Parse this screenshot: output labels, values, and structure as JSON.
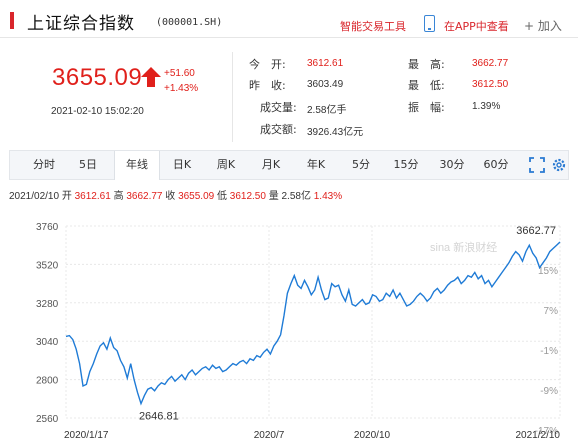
{
  "header": {
    "title": "上证综合指数",
    "code": "(000001.SH)",
    "tool_link": "智能交易工具",
    "app_link": "在APP中查看",
    "add_label": "+ 加入"
  },
  "quote": {
    "price": "3655.09",
    "change": "+51.60",
    "change_pct": "+1.43%",
    "datetime": "2021-02-10 15:02:20"
  },
  "stats": [
    {
      "label": "今　开:",
      "value": "3612.61",
      "color": "red"
    },
    {
      "label": "昨　收:",
      "value": "3603.49",
      "color": "normal"
    },
    {
      "label": "成交量:",
      "value": "2.58亿手",
      "color": "normal"
    },
    {
      "label": "成交额:",
      "value": "3926.43亿元",
      "color": "normal"
    },
    {
      "label": "最　高:",
      "value": "3662.77",
      "color": "red"
    },
    {
      "label": "最　低:",
      "value": "3612.50",
      "color": "red"
    },
    {
      "label": "振　幅:",
      "value": "1.39%",
      "color": "normal"
    }
  ],
  "tabs": [
    {
      "label": "分时"
    },
    {
      "label": "5日"
    },
    {
      "label": "年线",
      "active": true
    },
    {
      "label": "日K"
    },
    {
      "label": "周K"
    },
    {
      "label": "月K"
    },
    {
      "label": "年K"
    },
    {
      "label": "5分"
    },
    {
      "label": "15分"
    },
    {
      "label": "30分"
    },
    {
      "label": "60分"
    }
  ],
  "info_line": {
    "date": "2021/02/10",
    "open_label": "开",
    "open": "3612.61",
    "high_label": "高",
    "high": "3662.77",
    "close_label": "收",
    "close": "3655.09",
    "low_label": "低",
    "low": "3612.50",
    "vol_label": "量",
    "vol": "2.58亿",
    "pct": "1.43%"
  },
  "chart_data": {
    "type": "line",
    "x_labels": [
      "2020/1/17",
      "2020/7",
      "2020/10",
      "2021/2/10"
    ],
    "y_ticks": [
      2560,
      2800,
      3040,
      3280,
      3520,
      3760
    ],
    "pct_ticks": [
      "15%",
      "7%",
      "-1%",
      "-9%",
      "-17%"
    ],
    "ylim": [
      2560,
      3760
    ],
    "max_label": "3662.77",
    "min_label": "2646.81",
    "watermark": "sina 新浪财经",
    "line_color": "#1f7bd6",
    "values": [
      3070,
      3075,
      3050,
      2990,
      2900,
      2760,
      2770,
      2850,
      2900,
      2960,
      3010,
      3030,
      2990,
      3060,
      3000,
      2980,
      2920,
      2880,
      2810,
      2900,
      2800,
      2720,
      2650,
      2700,
      2740,
      2750,
      2730,
      2760,
      2780,
      2770,
      2800,
      2820,
      2790,
      2810,
      2830,
      2800,
      2840,
      2860,
      2830,
      2850,
      2870,
      2880,
      2860,
      2890,
      2870,
      2880,
      2850,
      2860,
      2880,
      2900,
      2890,
      2910,
      2920,
      2900,
      2930,
      2920,
      2950,
      2940,
      2970,
      2990,
      2960,
      3010,
      3040,
      3080,
      3200,
      3340,
      3400,
      3450,
      3390,
      3370,
      3420,
      3380,
      3330,
      3360,
      3440,
      3360,
      3300,
      3310,
      3400,
      3380,
      3390,
      3330,
      3290,
      3360,
      3270,
      3260,
      3280,
      3300,
      3270,
      3280,
      3330,
      3320,
      3290,
      3300,
      3340,
      3320,
      3360,
      3310,
      3340,
      3300,
      3260,
      3270,
      3290,
      3320,
      3340,
      3320,
      3290,
      3310,
      3350,
      3370,
      3340,
      3360,
      3390,
      3410,
      3420,
      3440,
      3400,
      3420,
      3450,
      3440,
      3470,
      3430,
      3450,
      3400,
      3420,
      3380,
      3410,
      3440,
      3470,
      3500,
      3530,
      3570,
      3600,
      3580,
      3540,
      3600,
      3640,
      3590,
      3560,
      3500,
      3530,
      3560,
      3600,
      3620,
      3640,
      3660
    ]
  }
}
